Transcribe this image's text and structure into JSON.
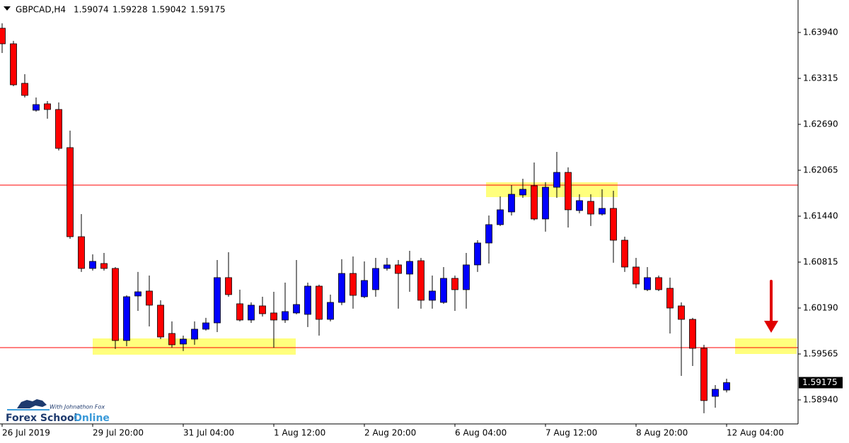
{
  "chart_data": {
    "type": "candlestick",
    "title": "GBPCAD,H4",
    "categories": [
      "26 Jul 2019",
      null,
      null,
      null,
      null,
      null,
      null,
      null,
      "29 Jul 20:00",
      null,
      null,
      null,
      null,
      null,
      null,
      null,
      "31 Jul 04:00",
      null,
      null,
      null,
      null,
      null,
      null,
      null,
      "1 Aug 12:00",
      null,
      null,
      null,
      null,
      null,
      null,
      null,
      "2 Aug 20:00",
      null,
      null,
      null,
      null,
      null,
      null,
      null,
      "6 Aug 04:00",
      null,
      null,
      null,
      null,
      null,
      null,
      null,
      "7 Aug 12:00",
      null,
      null,
      null,
      null,
      null,
      null,
      null,
      "8 Aug 20:00",
      null,
      null,
      null,
      null,
      null,
      null,
      null,
      "12 Aug 04:00"
    ],
    "open": [
      1.63998,
      1.63786,
      1.63248,
      1.62882,
      1.62969,
      1.62892,
      1.62373,
      1.61161,
      1.60729,
      1.60796,
      1.60729,
      1.59748,
      1.60354,
      1.60421,
      1.60229,
      1.59844,
      1.597,
      1.59767,
      1.59902,
      1.59988,
      1.60604,
      1.60248,
      1.60027,
      1.60219,
      1.60123,
      1.60027,
      1.60123,
      1.60104,
      1.60488,
      1.60036,
      1.60267,
      1.60661,
      1.60344,
      1.6044,
      1.60729,
      1.60777,
      1.60652,
      1.60834,
      1.60296,
      1.60267,
      1.60594,
      1.6044,
      1.60777,
      1.61075,
      1.61325,
      1.61498,
      1.61729,
      1.61854,
      1.61402,
      1.61834,
      1.62036,
      1.61517,
      1.61642,
      1.61469,
      1.61546,
      1.61113,
      1.60748,
      1.6044,
      1.60604,
      1.60459,
      1.60219,
      1.60036,
      1.59642,
      1.58988,
      1.59074
    ],
    "high": [
      1.64065,
      1.63825,
      1.63373,
      1.63055,
      1.63007,
      1.62988,
      1.62604,
      1.61469,
      1.60921,
      1.6094,
      1.60748,
      1.60363,
      1.60681,
      1.60632,
      1.60296,
      1.60008,
      1.59815,
      1.60008,
      1.60056,
      1.60844,
      1.6095,
      1.6044,
      1.60267,
      1.60344,
      1.60411,
      1.60536,
      1.60844,
      1.60536,
      1.60508,
      1.60373,
      1.60854,
      1.60892,
      1.60825,
      1.60873,
      1.60873,
      1.60844,
      1.60969,
      1.60873,
      1.60632,
      1.60748,
      1.60632,
      1.6094,
      1.61113,
      1.6145,
      1.61709,
      1.61863,
      1.6195,
      1.62171,
      1.61902,
      1.62315,
      1.62104,
      1.61738,
      1.61738,
      1.61806,
      1.61786,
      1.61161,
      1.60873,
      1.60748,
      1.60632,
      1.60604,
      1.60267,
      1.60056,
      1.5969,
      1.59142,
      1.59228
    ],
    "low": [
      1.63661,
      1.63209,
      1.63055,
      1.62863,
      1.62767,
      1.62334,
      1.61132,
      1.60681,
      1.607,
      1.607,
      1.59633,
      1.59671,
      1.60152,
      1.5994,
      1.59767,
      1.59652,
      1.59604,
      1.5969,
      1.59883,
      1.59863,
      1.60344,
      1.60008,
      1.59988,
      1.60075,
      1.59652,
      1.59988,
      1.60104,
      1.59931,
      1.59815,
      1.60008,
      1.60229,
      1.60181,
      1.60325,
      1.60344,
      1.607,
      1.60181,
      1.60411,
      1.60181,
      1.60181,
      1.60248,
      1.60152,
      1.60181,
      1.60681,
      1.60796,
      1.61306,
      1.6145,
      1.6169,
      1.61382,
      1.61229,
      1.6169,
      1.61286,
      1.61479,
      1.61306,
      1.6145,
      1.60806,
      1.60681,
      1.6046,
      1.60421,
      1.60421,
      1.59844,
      1.59267,
      1.59402,
      1.58758,
      1.58834,
      1.59042
    ],
    "close": [
      1.63786,
      1.63228,
      1.63084,
      1.62959,
      1.62892,
      1.62363,
      1.61161,
      1.60729,
      1.60825,
      1.60729,
      1.59748,
      1.60344,
      1.60411,
      1.60229,
      1.59796,
      1.5969,
      1.59767,
      1.59902,
      1.59988,
      1.60604,
      1.60373,
      1.60027,
      1.60229,
      1.60113,
      1.60027,
      1.60142,
      1.60238,
      1.60488,
      1.60036,
      1.60267,
      1.60661,
      1.60363,
      1.60565,
      1.60729,
      1.60777,
      1.60661,
      1.60825,
      1.60296,
      1.60421,
      1.60594,
      1.6044,
      1.60777,
      1.61075,
      1.61325,
      1.61527,
      1.61738,
      1.61806,
      1.61402,
      1.61834,
      1.62036,
      1.61527,
      1.61652,
      1.61469,
      1.61546,
      1.61113,
      1.60748,
      1.60517,
      1.60604,
      1.6044,
      1.6019,
      1.60036,
      1.59642,
      1.58931,
      1.59084,
      1.59175
    ],
    "up_color": "#0000ff",
    "down_color": "#ff0000",
    "ylim": [
      1.58613,
      1.64382
    ],
    "yticks": [
      {
        "value": 1.6394,
        "label": "1.63940"
      },
      {
        "value": 1.63315,
        "label": "1.63315"
      },
      {
        "value": 1.6269,
        "label": "1.62690"
      },
      {
        "value": 1.62065,
        "label": "1.62065"
      },
      {
        "value": 1.6144,
        "label": "1.61440"
      },
      {
        "value": 1.60815,
        "label": "1.60815"
      },
      {
        "value": 1.6019,
        "label": "1.60190"
      },
      {
        "value": 1.59565,
        "label": "1.59565"
      },
      {
        "value": 1.5894,
        "label": "1.58940"
      }
    ],
    "hlines": [
      1.61863,
      1.59652
    ],
    "hline_color": "#ff0000",
    "grid": false,
    "watermark": {
      "tagline": "With Johnathon Fox",
      "brand": "Forex School",
      "brand_suffix": "Online"
    }
  }
}
